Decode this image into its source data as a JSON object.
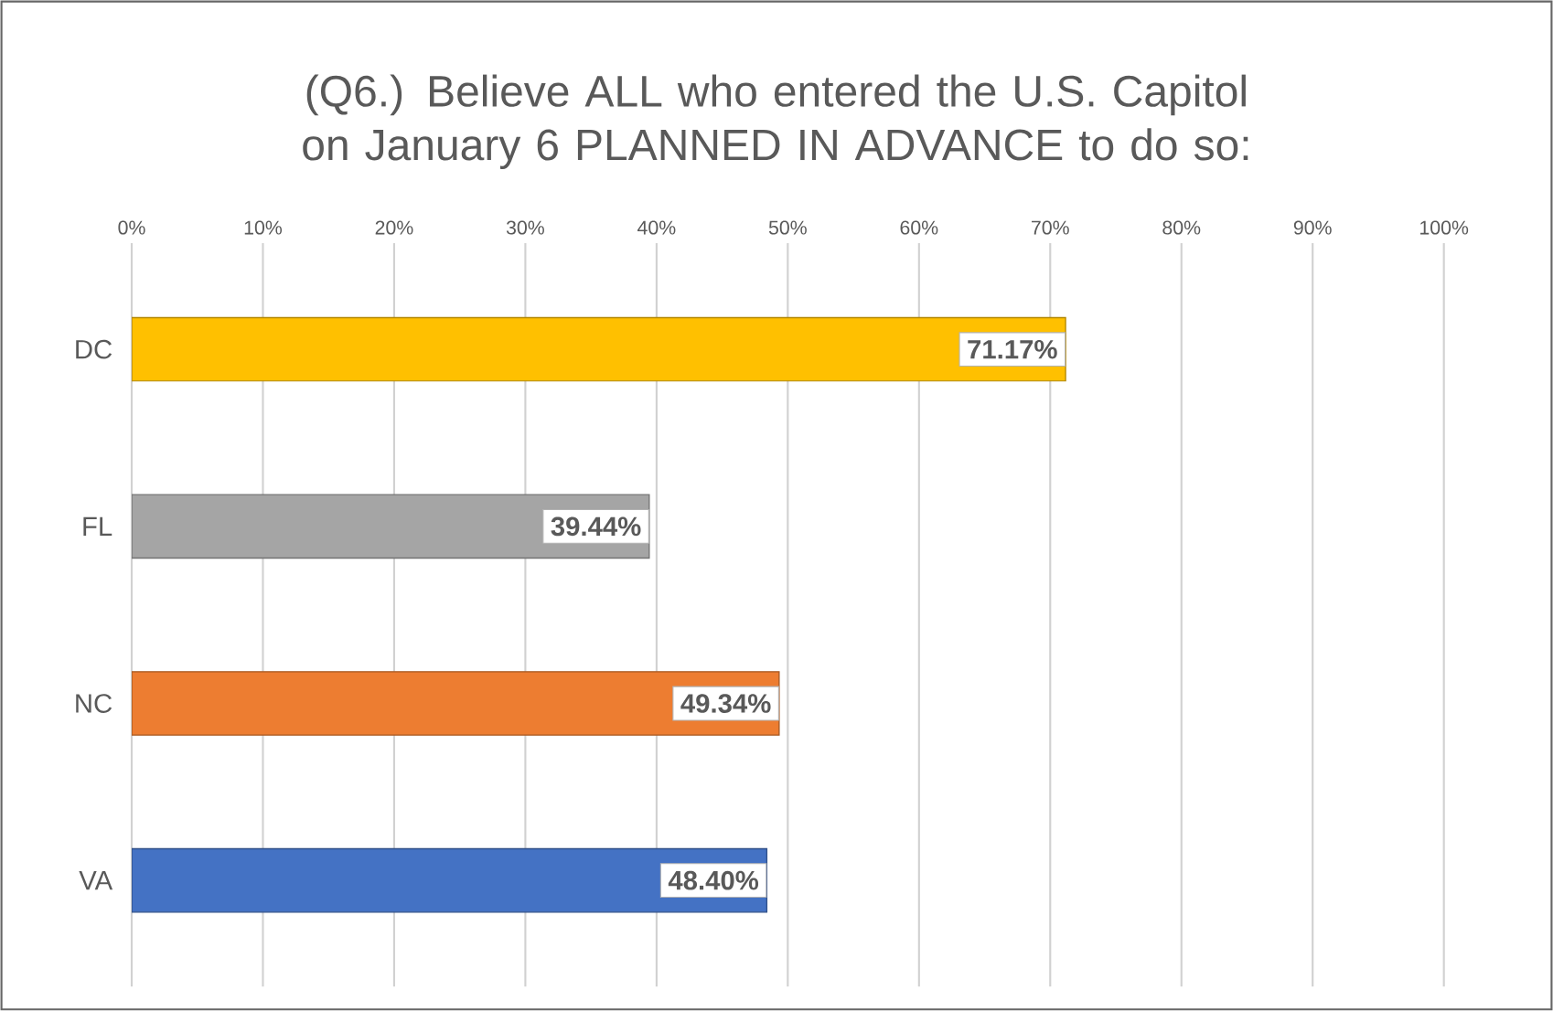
{
  "chart_data": {
    "type": "bar",
    "orientation": "horizontal",
    "title": "(Q6.) Believe ALL who entered the U.S. Capitol on January 6 PLANNED IN ADVANCE to do so:",
    "categories": [
      "DC",
      "FL",
      "NC",
      "VA"
    ],
    "values": [
      71.17,
      39.44,
      49.34,
      48.4
    ],
    "colors": [
      "#ffc000",
      "#a5a5a5",
      "#ed7d31",
      "#4472c4"
    ],
    "value_labels": [
      "71.17%",
      "39.44%",
      "49.34%",
      "48.40%"
    ],
    "xlim": [
      0,
      100
    ],
    "xticks": [
      {
        "value": 0,
        "label": "0%"
      },
      {
        "value": 10,
        "label": "10%"
      },
      {
        "value": 20,
        "label": "20%"
      },
      {
        "value": 30,
        "label": "30%"
      },
      {
        "value": 40,
        "label": "40%"
      },
      {
        "value": 50,
        "label": "50%"
      },
      {
        "value": 60,
        "label": "60%"
      },
      {
        "value": 70,
        "label": "70%"
      },
      {
        "value": 80,
        "label": "80%"
      },
      {
        "value": 90,
        "label": "90%"
      },
      {
        "value": 100,
        "label": "100%"
      }
    ],
    "grid": "x"
  }
}
